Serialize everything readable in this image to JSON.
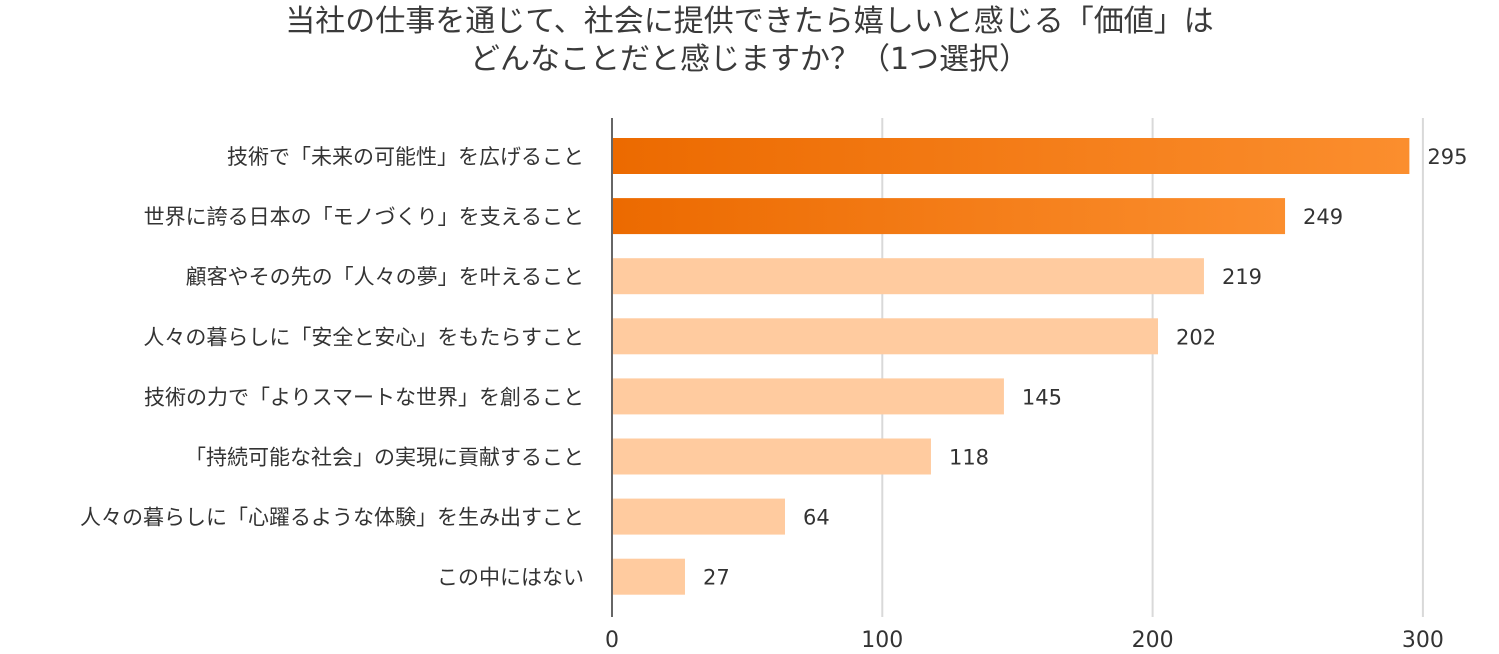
{
  "chart_data": {
    "type": "bar",
    "orientation": "horizontal",
    "title_lines": [
      "当社の仕事を通じて、社会に提供できたら嬉しいと感じる「価値」は",
      "どんなことだと感じますか？（1つ選択）"
    ],
    "categories": [
      "技術で「未来の可能性」を広げること",
      "世界に誇る日本の「モノづくり」を支えること",
      "顧客やその先の「人々の夢」を叶えること",
      "人々の暮らしに「安全と安心」をもたらすこと",
      "技術の力で「よりスマートな世界」を創ること",
      "「持続可能な社会」の実現に貢献すること",
      "人々の暮らしに「心躍るような体験」を生み出すこと",
      "この中にはない"
    ],
    "values": [
      295,
      249,
      219,
      202,
      145,
      118,
      64,
      27
    ],
    "highlighted": [
      true,
      true,
      false,
      false,
      false,
      false,
      false,
      false
    ],
    "xlim": [
      0,
      300
    ],
    "xticks": [
      "0",
      "100",
      "200",
      "300"
    ],
    "grid": true,
    "data_labels": true,
    "colors": {
      "highlight_start": "#ec6a00",
      "highlight_end": "#fb8e2e",
      "normal": "#ffcb9f",
      "grid": "#d9d9d9",
      "axis": "#666666",
      "text": "#333333"
    }
  }
}
